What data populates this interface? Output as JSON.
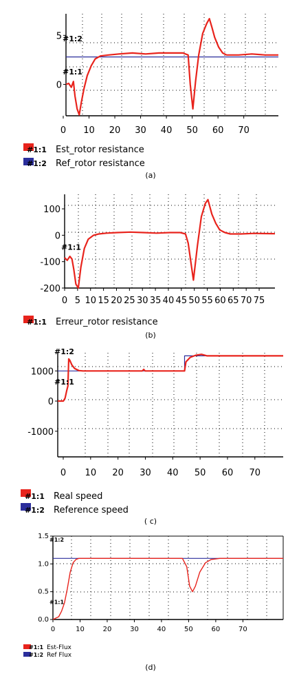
{
  "colors": {
    "red": "#e8231c",
    "blue": "#2b2e9c"
  },
  "chart_data": [
    {
      "type": "line",
      "caption": "(a)",
      "xlim": [
        0,
        80
      ],
      "ylim": [
        -3.2,
        7.2
      ],
      "x_ticks": [
        "0",
        "10",
        "20",
        "30",
        "40",
        "50",
        "60",
        "70"
      ],
      "y_ticks": [
        {
          "value": 5,
          "label": "5"
        },
        {
          "value": 0,
          "label": "0"
        }
      ],
      "marker_labels": [
        {
          "text": "#1:2",
          "x": 0,
          "y": 4.4
        },
        {
          "text": "#1:1",
          "x": 0,
          "y": 1.0
        }
      ],
      "series": [
        {
          "name": "Est_rotor resistance",
          "id": "#1:1",
          "color": "#e8231c",
          "x": [
            0,
            1,
            2,
            2.8,
            3.4,
            4.2,
            5.0,
            5.8,
            6.8,
            8,
            9.5,
            11,
            13,
            16,
            20,
            25,
            30,
            35,
            40,
            44,
            46,
            46.8,
            47.8,
            48.8,
            50,
            51.5,
            53,
            54,
            55,
            56,
            57.5,
            59,
            60.5,
            62,
            65,
            70,
            75,
            80
          ],
          "y": [
            0,
            0.1,
            -0.3,
            0.3,
            -1.2,
            -2.5,
            -3.1,
            -1.8,
            -0.4,
            0.9,
            1.9,
            2.6,
            2.9,
            3.0,
            3.1,
            3.2,
            3.1,
            3.2,
            3.2,
            3.2,
            3.0,
            0.0,
            -2.5,
            0.3,
            3.0,
            5.2,
            6.2,
            6.7,
            5.8,
            4.8,
            3.8,
            3.2,
            3.0,
            3.0,
            3.0,
            3.1,
            3.0,
            3.0
          ]
        },
        {
          "name": "Ref_rotor resistance",
          "id": "#1:2",
          "color": "#2b2e9c",
          "x": [
            0,
            80
          ],
          "y": [
            2.8,
            2.8
          ]
        }
      ]
    },
    {
      "type": "line",
      "caption": "(b)",
      "xlim": [
        0,
        80
      ],
      "ylim": [
        -200,
        155
      ],
      "x_ticks": [
        "0",
        "5",
        "10",
        "15",
        "20",
        "25",
        "30",
        "35",
        "40",
        "45",
        "50",
        "55",
        "60",
        "65",
        "70",
        "75"
      ],
      "y_ticks": [
        {
          "value": 100,
          "label": "100"
        },
        {
          "value": 0,
          "label": "0"
        },
        {
          "value": -100,
          "label": "-100"
        },
        {
          "value": -200,
          "label": "-200"
        }
      ],
      "marker_labels": [
        {
          "text": "#1:1",
          "x": 0,
          "y": -55
        }
      ],
      "series": [
        {
          "name": "Erreur_rotor resistance",
          "id": "#1:1",
          "color": "#e8231c",
          "x": [
            0,
            1,
            2,
            2.8,
            3.5,
            4.3,
            5.2,
            6.2,
            7.5,
            9,
            11,
            13,
            16,
            20,
            25,
            30,
            35,
            40,
            44,
            46,
            47,
            48,
            49,
            50.5,
            52,
            53.5,
            54.5,
            56,
            57.5,
            59,
            61,
            63,
            67,
            72,
            80
          ],
          "y": [
            -85,
            -95,
            -80,
            -90,
            -130,
            -185,
            -200,
            -120,
            -50,
            -15,
            0,
            5,
            8,
            10,
            12,
            10,
            8,
            10,
            10,
            5,
            -30,
            -100,
            -170,
            -40,
            70,
            120,
            135,
            80,
            45,
            20,
            10,
            5,
            5,
            7,
            6
          ]
        }
      ]
    },
    {
      "type": "line",
      "caption": "( c)",
      "xlim": [
        0,
        80
      ],
      "ylim": [
        -1850,
        1600
      ],
      "x_ticks": [
        "0",
        "10",
        "20",
        "30",
        "40",
        "50",
        "60",
        "70"
      ],
      "y_ticks": [
        {
          "value": 1000,
          "label": "1000"
        },
        {
          "value": 0,
          "label": "0"
        },
        {
          "value": -1000,
          "label": "-1000"
        }
      ],
      "marker_labels": [
        {
          "text": "#1:2",
          "x": 0,
          "y": 1550
        },
        {
          "text": "#1:1",
          "x": 0,
          "y": 550
        }
      ],
      "series": [
        {
          "name": "Real speed",
          "id": "#1:1",
          "color": "#e8231c",
          "x": [
            0,
            2,
            2.6,
            3.2,
            3.6,
            3.9,
            4.3,
            5,
            6,
            7.5,
            9,
            12,
            20,
            30,
            30.5,
            31,
            40,
            45,
            45.5,
            47,
            49,
            51,
            53,
            60,
            65,
            70,
            80
          ],
          "y": [
            0,
            0,
            100,
            350,
            500,
            1400,
            1350,
            1200,
            1080,
            1010,
            1000,
            1000,
            1000,
            1000,
            1050,
            1000,
            1000,
            1000,
            1300,
            1450,
            1520,
            1550,
            1500,
            1500,
            1500,
            1500,
            1500
          ]
        },
        {
          "name": "Reference speed",
          "id": "#1:2",
          "color": "#2b2e9c",
          "x": [
            0,
            45,
            45,
            80
          ],
          "y": [
            1000,
            1000,
            1500,
            1500
          ]
        }
      ]
    },
    {
      "type": "line",
      "caption": "(d)",
      "xlim": [
        0,
        80
      ],
      "ylim": [
        0,
        1.5
      ],
      "x_ticks": [
        "0",
        "10",
        "20",
        "30",
        "40",
        "50",
        "60",
        "70"
      ],
      "y_ticks": [
        {
          "value": 1.5,
          "label": "1.5"
        },
        {
          "value": 1.0,
          "label": "1.0"
        },
        {
          "value": 0.5,
          "label": "0.5"
        },
        {
          "value": 0.0,
          "label": "0.0"
        }
      ],
      "marker_labels": [
        {
          "text": "#1:2",
          "x": 0,
          "y": 1.4
        },
        {
          "text": "#1:1",
          "x": 0,
          "y": 0.28
        }
      ],
      "series": [
        {
          "name": "Est-Flux",
          "id": "#1:1",
          "color": "#e8231c",
          "x": [
            0,
            2,
            3,
            4,
            5,
            6,
            7,
            8,
            9,
            10,
            12,
            20,
            30,
            40,
            45,
            46.5,
            47.5,
            48.5,
            49.5,
            51,
            53,
            55,
            58,
            60,
            70,
            80
          ],
          "y": [
            0,
            0.05,
            0.15,
            0.3,
            0.55,
            0.85,
            1.02,
            1.08,
            1.1,
            1.1,
            1.1,
            1.1,
            1.1,
            1.1,
            1.1,
            0.95,
            0.6,
            0.5,
            0.6,
            0.85,
            1.02,
            1.08,
            1.1,
            1.1,
            1.1,
            1.1
          ]
        },
        {
          "name": "Ref Flux",
          "id": "#1:2",
          "color": "#2b2e9c",
          "x": [
            0,
            80
          ],
          "y": [
            1.1,
            1.1
          ]
        }
      ]
    }
  ]
}
